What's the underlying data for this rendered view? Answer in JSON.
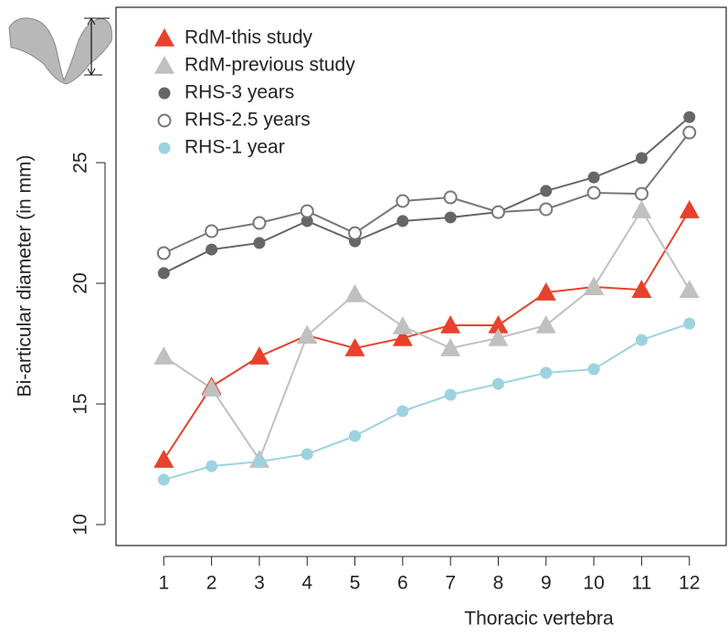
{
  "chart_data": {
    "type": "line",
    "x_label": "Thoracic vertebra",
    "y_label": "Bi-articular diameter (in mm)",
    "x": [
      1,
      2,
      3,
      4,
      5,
      6,
      7,
      8,
      9,
      10,
      11,
      12
    ],
    "xlim": [
      0,
      12.77
    ],
    "xticks": [
      1,
      2,
      3,
      4,
      5,
      6,
      7,
      8,
      9,
      10,
      11,
      12
    ],
    "ylim": [
      9.13,
      31.44
    ],
    "yticks": [
      10,
      15,
      20,
      25
    ],
    "legend": "upper-left",
    "series": [
      {
        "name": "RdM-this study",
        "color": "#e8412c",
        "marker": "triangle",
        "values": [
          12.69,
          15.72,
          16.97,
          17.84,
          17.31,
          17.73,
          18.26,
          18.26,
          19.62,
          19.85,
          19.73,
          23.03
        ]
      },
      {
        "name": "RdM-previous study",
        "color": "#c0c0c0",
        "marker": "triangle",
        "values": [
          16.97,
          15.64,
          12.69,
          17.84,
          19.55,
          18.22,
          17.31,
          17.73,
          18.26,
          19.85,
          23.03,
          19.73
        ]
      },
      {
        "name": "RHS-3 years",
        "color": "#666666",
        "marker": "circle",
        "values": [
          20.42,
          21.4,
          21.67,
          22.58,
          21.74,
          22.58,
          22.73,
          22.95,
          23.83,
          24.39,
          25.19,
          26.89
        ]
      },
      {
        "name": "RHS-2.5 years",
        "color": "#777777",
        "marker": "open-circle",
        "values": [
          21.25,
          22.16,
          22.5,
          22.99,
          22.08,
          23.41,
          23.56,
          22.95,
          23.07,
          23.75,
          23.71,
          26.25
        ]
      },
      {
        "name": "RHS-1 year",
        "color": "#9dd3df",
        "marker": "circle",
        "values": [
          11.86,
          12.42,
          12.61,
          12.92,
          13.67,
          14.7,
          15.38,
          15.83,
          16.29,
          16.44,
          17.65,
          18.33
        ]
      }
    ]
  }
}
